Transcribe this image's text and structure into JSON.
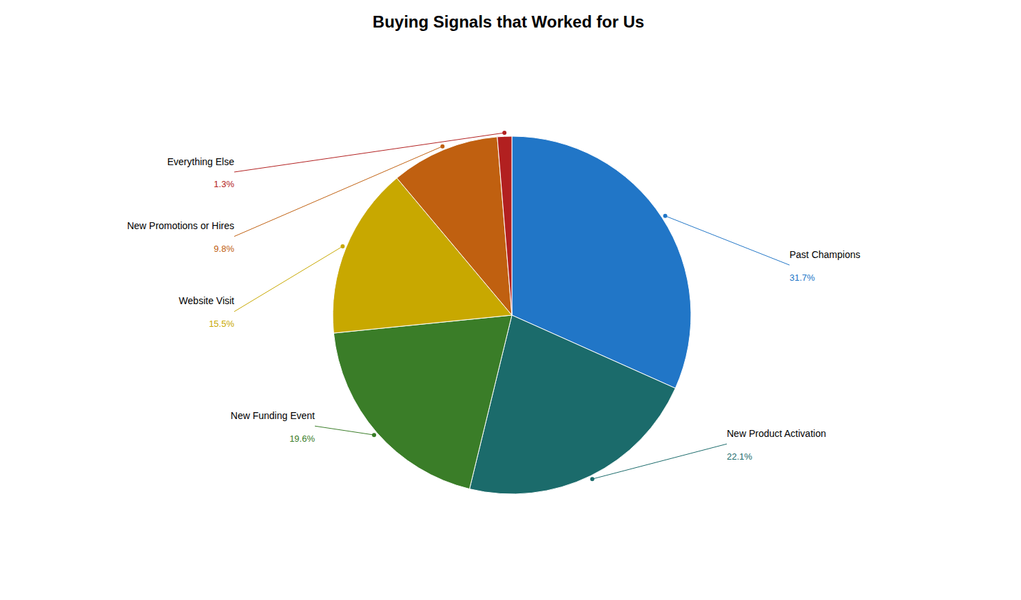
{
  "chart_data": {
    "type": "pie",
    "title": "Buying Signals that Worked for Us",
    "categories": [
      "Past Champions",
      "New Product Activation",
      "New Funding Event",
      "Website Visit",
      "New Promotions or Hires",
      "Everything Else"
    ],
    "values": [
      31.7,
      22.1,
      19.6,
      15.5,
      9.8,
      1.3
    ],
    "value_labels": [
      "31.7%",
      "22.1%",
      "19.6%",
      "15.5%",
      "9.8%",
      "1.3%"
    ],
    "colors": [
      "#2176C7",
      "#1B6B6B",
      "#3A7D28",
      "#C8A800",
      "#C06010",
      "#B22020"
    ],
    "data_labels": true
  }
}
